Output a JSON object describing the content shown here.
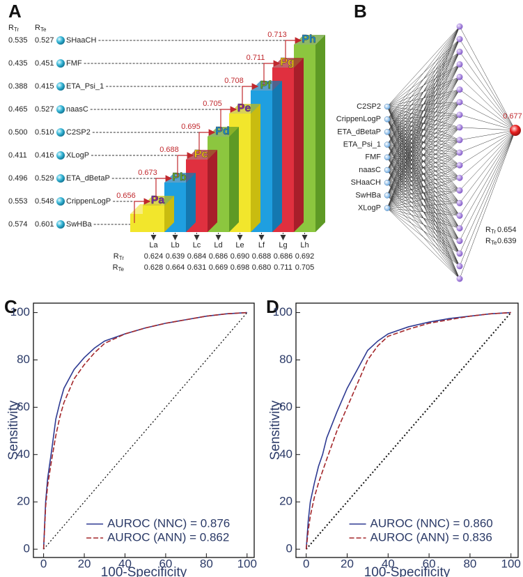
{
  "panel_labels": [
    "A",
    "B",
    "C",
    "D"
  ],
  "panel_a": {
    "header": [
      {
        "main": "R",
        "sub": "Tr"
      },
      {
        "main": "R",
        "sub": "Te"
      }
    ],
    "rows": [
      {
        "r_tr": "0.535",
        "r_te": "0.527",
        "descriptor": "SHaaCH"
      },
      {
        "r_tr": "0.435",
        "r_te": "0.451",
        "descriptor": "FMF"
      },
      {
        "r_tr": "0.388",
        "r_te": "0.415",
        "descriptor": "ETA_Psi_1"
      },
      {
        "r_tr": "0.465",
        "r_te": "0.527",
        "descriptor": "naasC"
      },
      {
        "r_tr": "0.500",
        "r_te": "0.510",
        "descriptor": "C2SP2"
      },
      {
        "r_tr": "0.411",
        "r_te": "0.416",
        "descriptor": "XLogP"
      },
      {
        "r_tr": "0.496",
        "r_te": "0.529",
        "descriptor": "ETA_dBetaP"
      },
      {
        "r_tr": "0.553",
        "r_te": "0.548",
        "descriptor": "CrippenLogP"
      },
      {
        "r_tr": "0.574",
        "r_te": "0.601",
        "descriptor": "SwHBa"
      }
    ],
    "blocks": [
      "Pa",
      "Pb",
      "Pc",
      "Pd",
      "Pe",
      "Pf",
      "Pg",
      "Ph"
    ],
    "steps": [
      "0.656",
      "0.673",
      "0.688",
      "0.695",
      "0.705",
      "0.708",
      "0.711",
      "0.713"
    ],
    "levels": {
      "names": [
        "La",
        "Lb",
        "Lc",
        "Ld",
        "Le",
        "Lf",
        "Lg",
        "Lh"
      ],
      "r_tr": [
        "0.624",
        "0.639",
        "0.684",
        "0.686",
        "0.690",
        "0.688",
        "0.686",
        "0.692"
      ],
      "r_te": [
        "0.628",
        "0.664",
        "0.631",
        "0.669",
        "0.698",
        "0.680",
        "0.711",
        "0.705"
      ]
    }
  },
  "panel_b": {
    "inputs": [
      "C2SP2",
      "CrippenLogP",
      "ETA_dBetaP",
      "ETA_Psi_1",
      "FMF",
      "naasC",
      "SHaaCH",
      "SwHBa",
      "XLogP"
    ],
    "output": "0.677",
    "r_tr": "0.654",
    "r_te": "0.639"
  },
  "chart_data": [
    {
      "type": "line",
      "xlabel": "100-Specificity",
      "ylabel": "Sensitivity",
      "x": [
        0,
        1,
        2,
        4,
        6,
        8,
        10,
        15,
        20,
        25,
        30,
        35,
        40,
        50,
        60,
        70,
        80,
        90,
        100
      ],
      "series": [
        {
          "name": "AUROC (NNC) = 0.876",
          "color": "#2e3a92",
          "dash": false,
          "values": [
            0,
            20,
            30,
            42,
            55,
            62,
            68,
            76,
            81,
            85,
            88,
            89.5,
            91,
            93.5,
            95.5,
            97,
            98.5,
            99.5,
            100
          ]
        },
        {
          "name": "AUROC (ANN) = 0.862",
          "color": "#a3262a",
          "dash": true,
          "values": [
            0,
            18,
            27,
            38,
            48,
            56,
            62,
            72,
            78,
            83,
            87,
            89,
            91,
            93.5,
            95.5,
            97,
            98.5,
            99.5,
            100
          ]
        }
      ],
      "xlim": [
        -5,
        103.5
      ],
      "ylim": [
        -3.5,
        104
      ],
      "xticks": [
        0,
        20,
        40,
        60,
        80,
        100
      ],
      "yticks": [
        0,
        20,
        40,
        60,
        80,
        100
      ],
      "legend": "lower right"
    },
    {
      "type": "line",
      "xlabel": "100-Specificity",
      "ylabel": "Sensitivity",
      "x": [
        0,
        1,
        2,
        4,
        6,
        8,
        10,
        15,
        20,
        25,
        30,
        35,
        40,
        50,
        60,
        70,
        80,
        90,
        100
      ],
      "series": [
        {
          "name": "AUROC (NNC) = 0.860",
          "color": "#2e3a92",
          "dash": false,
          "values": [
            0,
            12,
            20,
            28,
            35,
            40,
            47,
            58,
            68,
            76,
            84,
            88,
            91,
            94,
            96,
            97.5,
            98.5,
            99.5,
            100
          ]
        },
        {
          "name": "AUROC (ANN) = 0.836",
          "color": "#a3262a",
          "dash": true,
          "values": [
            0,
            8,
            14,
            22,
            28,
            33,
            38,
            50,
            60,
            70,
            80,
            86,
            90,
            93,
            95.5,
            97,
            98.5,
            99.5,
            100
          ]
        }
      ],
      "xlim": [
        -5,
        103.5
      ],
      "ylim": [
        -3.5,
        104
      ],
      "xticks": [
        0,
        20,
        40,
        60,
        80,
        100
      ],
      "yticks": [
        0,
        20,
        40,
        60,
        80,
        100
      ],
      "legend": "lower right"
    }
  ]
}
